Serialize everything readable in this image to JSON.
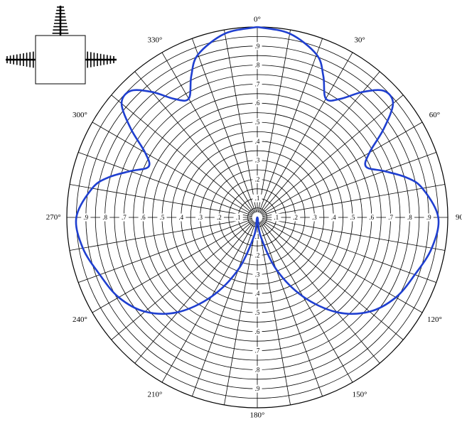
{
  "chart_data": {
    "type": "polar-line",
    "title": "",
    "angle_unit": "degrees",
    "angle_direction": "clockwise",
    "zero_location": "top",
    "radial_range": [
      0,
      1
    ],
    "radial_grid_step": 0.05,
    "radial_tick_labels": [
      ".1",
      ".2",
      ".3",
      ".4",
      ".5",
      ".6",
      ".7",
      ".8",
      ".9"
    ],
    "radial_tick_values": [
      0.1,
      0.2,
      0.3,
      0.4,
      0.5,
      0.6,
      0.7,
      0.8,
      0.9
    ],
    "angle_grid_step": 10,
    "angle_labels": [
      "0°",
      "30°",
      "60°",
      "90°",
      "120°",
      "150°",
      "180°",
      "210°",
      "240°",
      "270°",
      "300°",
      "330°"
    ],
    "angle_label_values": [
      0,
      30,
      60,
      90,
      120,
      150,
      180,
      210,
      240,
      270,
      300,
      330
    ],
    "grid": true,
    "legend": "none",
    "series": [
      {
        "color": "#1f3fd0",
        "points": [
          [
            0,
            1.0
          ],
          [
            10,
            0.98
          ],
          [
            20,
            0.91
          ],
          [
            25,
            0.82
          ],
          [
            30,
            0.72
          ],
          [
            35,
            0.76
          ],
          [
            40,
            0.86
          ],
          [
            45,
            0.94
          ],
          [
            50,
            0.93
          ],
          [
            55,
            0.81
          ],
          [
            60,
            0.68
          ],
          [
            65,
            0.63
          ],
          [
            70,
            0.71
          ],
          [
            75,
            0.81
          ],
          [
            80,
            0.88
          ],
          [
            90,
            0.95
          ],
          [
            100,
            0.93
          ],
          [
            110,
            0.88
          ],
          [
            120,
            0.84
          ],
          [
            130,
            0.77
          ],
          [
            140,
            0.65
          ],
          [
            150,
            0.48
          ],
          [
            160,
            0.29
          ],
          [
            170,
            0.1
          ],
          [
            180,
            0.0
          ],
          [
            190,
            0.1
          ],
          [
            200,
            0.29
          ],
          [
            210,
            0.48
          ],
          [
            220,
            0.65
          ],
          [
            230,
            0.77
          ],
          [
            240,
            0.84
          ],
          [
            250,
            0.88
          ],
          [
            260,
            0.93
          ],
          [
            270,
            0.95
          ],
          [
            280,
            0.88
          ],
          [
            285,
            0.81
          ],
          [
            290,
            0.71
          ],
          [
            295,
            0.63
          ],
          [
            300,
            0.68
          ],
          [
            305,
            0.81
          ],
          [
            310,
            0.93
          ],
          [
            315,
            0.94
          ],
          [
            320,
            0.86
          ],
          [
            325,
            0.76
          ],
          [
            330,
            0.72
          ],
          [
            335,
            0.82
          ],
          [
            340,
            0.91
          ],
          [
            350,
            0.98
          ],
          [
            360,
            1.0
          ]
        ]
      }
    ]
  },
  "inset": {
    "icon": "antenna-array-icon"
  }
}
